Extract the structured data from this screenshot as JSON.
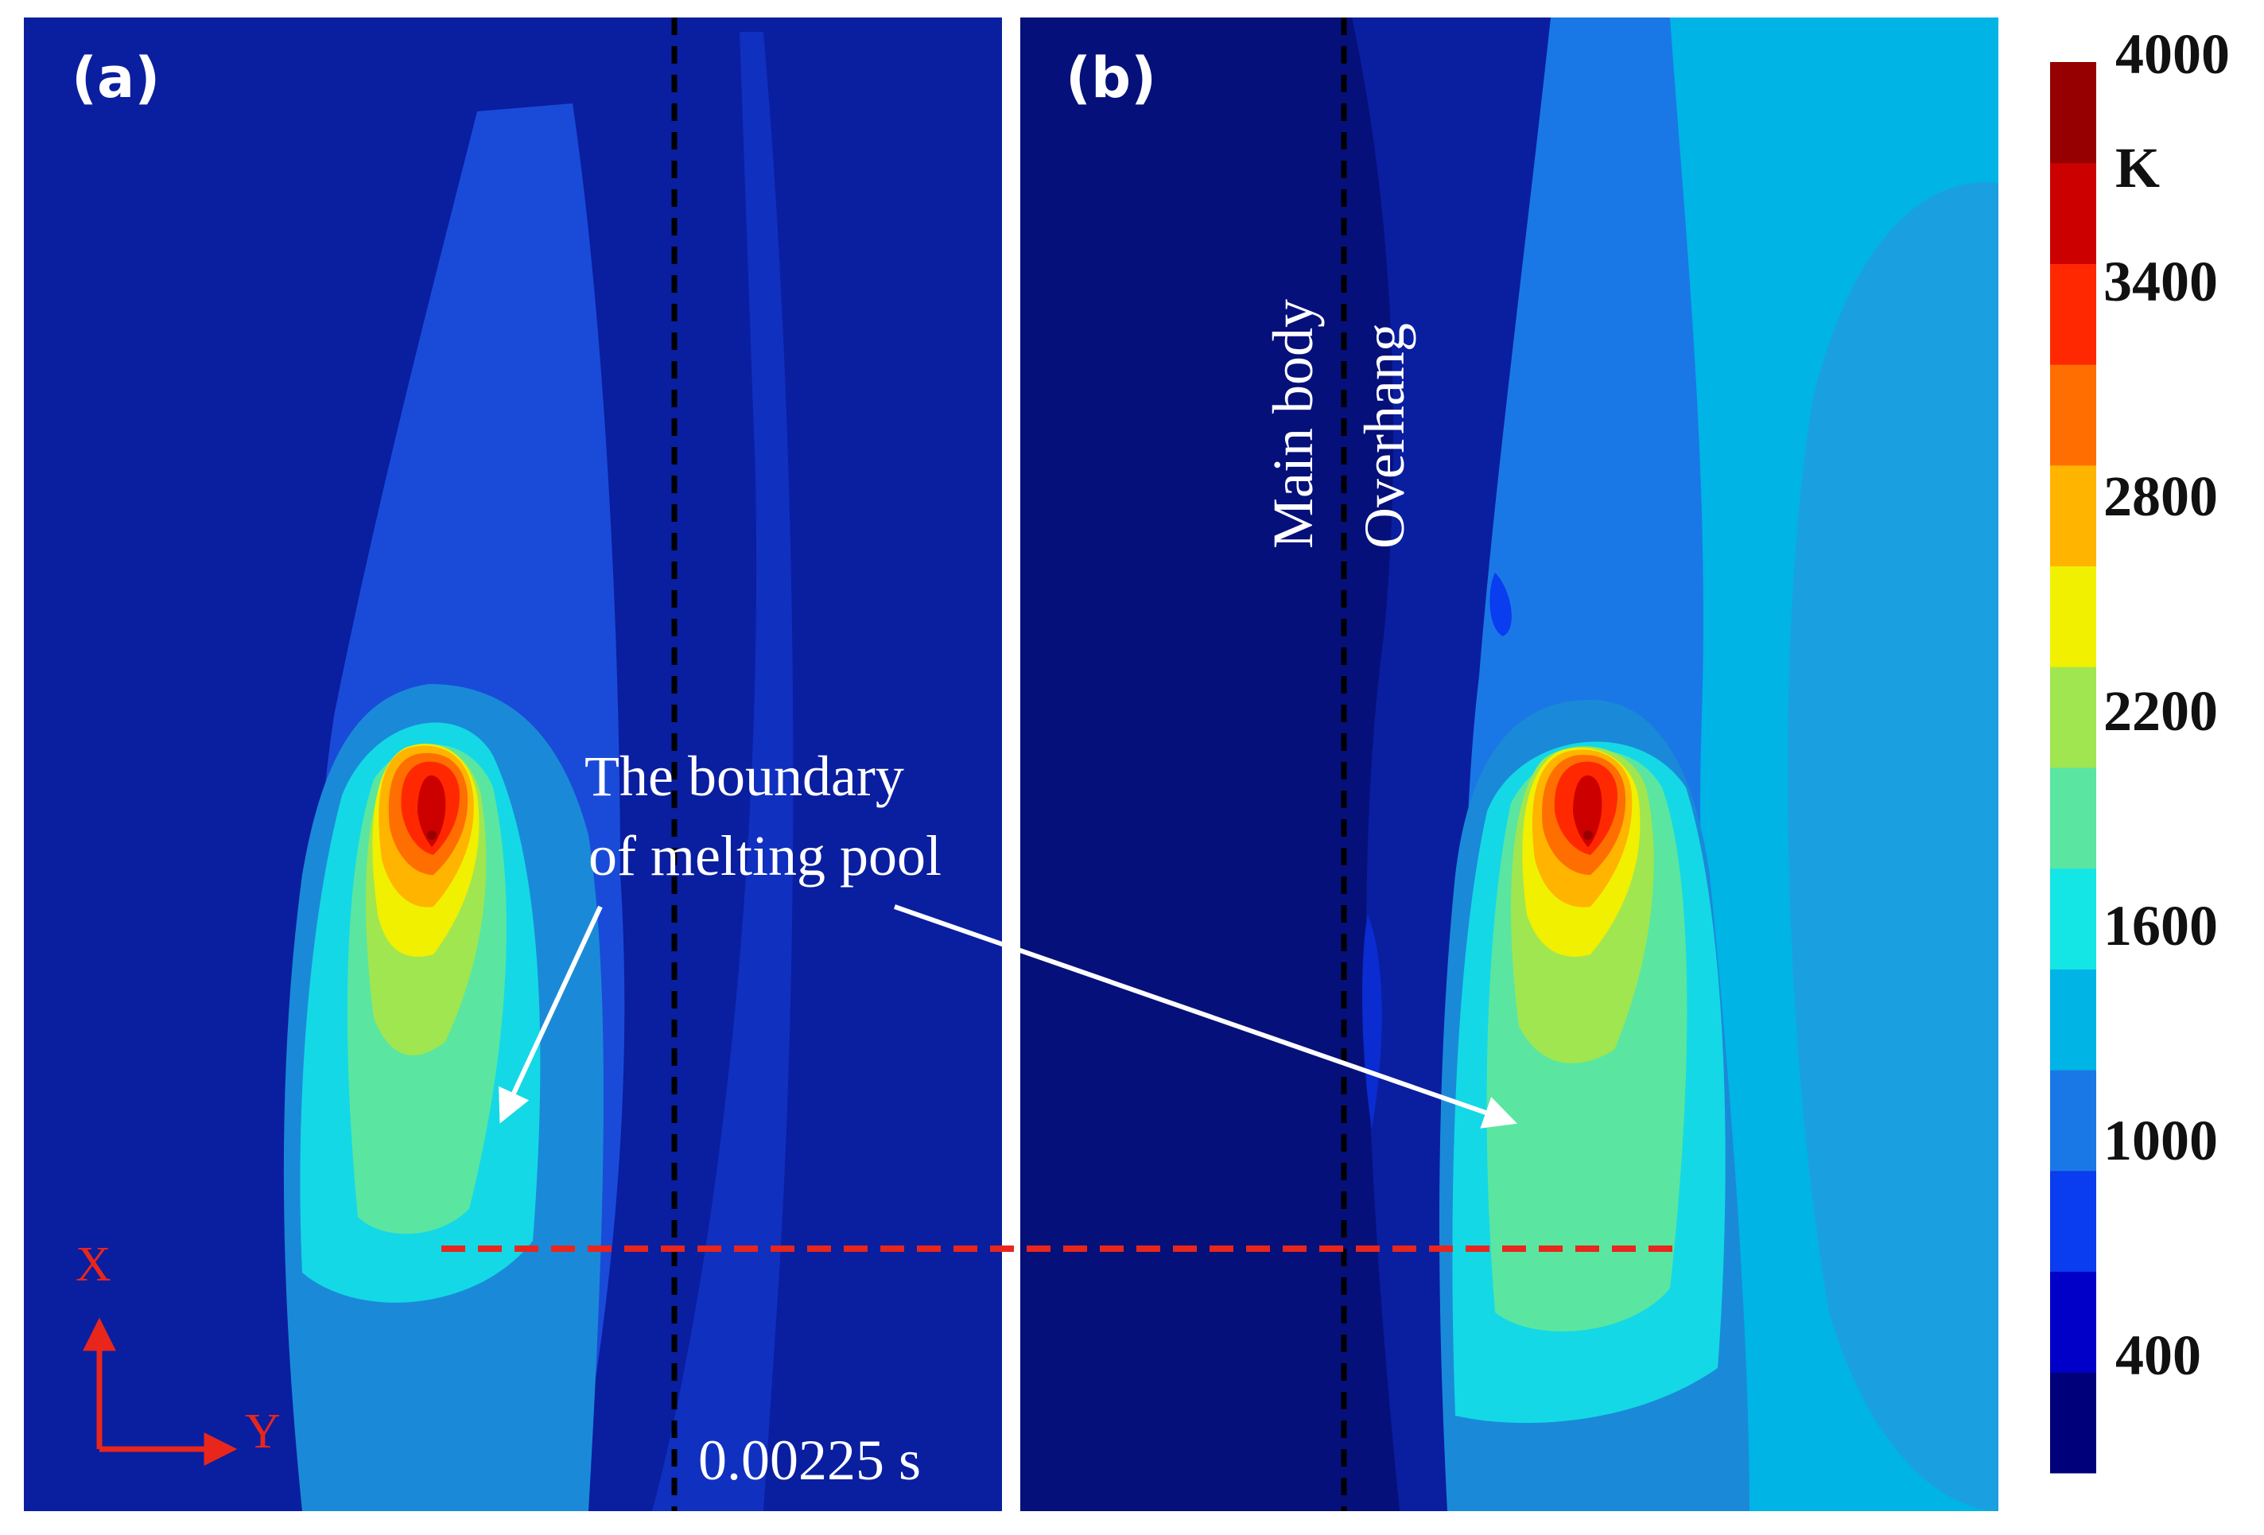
{
  "panels": [
    {
      "label": "(a)"
    },
    {
      "label": "(b)"
    }
  ],
  "annotations": {
    "boundary_line1": "The boundary",
    "boundary_line2": "of melting pool",
    "main_body": "Main body",
    "overhang": "Overhang",
    "time": "0.00225 s"
  },
  "axes": {
    "x": "X",
    "y": "Y"
  },
  "colorbar": {
    "unit": "K",
    "tick_labels": [
      "4000",
      "3400",
      "2800",
      "2200",
      "1600",
      "1000",
      "400"
    ],
    "colors": [
      "#00007a",
      "#0000c8",
      "#0a3cf0",
      "#1a78e6",
      "#00b4e6",
      "#14e6e6",
      "#5ae6a0",
      "#a0e650",
      "#f0f000",
      "#ffb400",
      "#ff6e00",
      "#ff2800",
      "#cd0000",
      "#960000"
    ]
  },
  "colors": {
    "background_blue": "#0a1ea0",
    "dark_blue": "#06107a",
    "dashed_black": "#000000",
    "dashed_red": "#e8261c",
    "arrow": "#ffffff"
  }
}
